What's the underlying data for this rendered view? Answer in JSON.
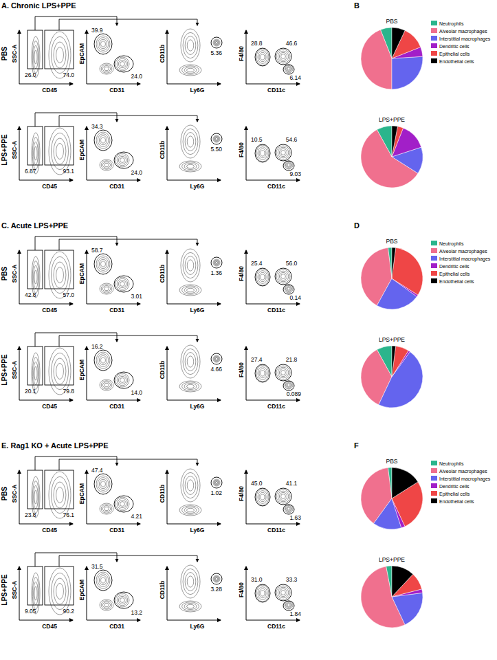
{
  "figure": {
    "plot_axes": [
      {
        "x": "CD45",
        "y": "SSC-A"
      },
      {
        "x": "CD31",
        "y": "EpCAM"
      },
      {
        "x": "Ly6G",
        "y": "CD11b"
      },
      {
        "x": "CD11c",
        "y": "F4/80"
      }
    ],
    "sections": [
      {
        "title": "A. Chronic LPS+PPE",
        "pie_letter": "B",
        "rows": [
          {
            "label": "PBS",
            "gates": [
              [
                "26.0",
                "74.0"
              ],
              [
                "39.9",
                "24.0"
              ],
              [
                "5.36"
              ],
              [
                "28.8",
                "46.6",
                "6.14"
              ]
            ]
          },
          {
            "label": "LPS+PPE",
            "gates": [
              [
                "6.87",
                "93.1"
              ],
              [
                "34.3",
                "24.0"
              ],
              [
                "5.50"
              ],
              [
                "10.5",
                "54.6",
                "9.03"
              ]
            ]
          }
        ]
      },
      {
        "title": "C. Acute LPS+PPE",
        "pie_letter": "D",
        "rows": [
          {
            "label": "PBS",
            "gates": [
              [
                "42.8",
                "57.0"
              ],
              [
                "58.7",
                "3.01"
              ],
              [
                "1.36"
              ],
              [
                "25.4",
                "56.0",
                "0.14"
              ]
            ]
          },
          {
            "label": "LPS+PPE",
            "gates": [
              [
                "20.1",
                "79.8"
              ],
              [
                "16.2",
                "14.0"
              ],
              [
                "4.66"
              ],
              [
                "27.4",
                "21.8",
                "0.089"
              ]
            ]
          }
        ]
      },
      {
        "title": "E. Rag1 KO + Acute LPS+PPE",
        "pie_letter": "F",
        "rows": [
          {
            "label": "PBS",
            "gates": [
              [
                "23.8",
                "76.1"
              ],
              [
                "47.4",
                "4.21"
              ],
              [
                "1.02"
              ],
              [
                "45.0",
                "41.1",
                "1.63"
              ]
            ]
          },
          {
            "label": "LPS+PPE",
            "gates": [
              [
                "9.05",
                "90.2"
              ],
              [
                "31.5",
                "13.2"
              ],
              [
                "3.28"
              ],
              [
                "31.0",
                "33.3",
                "1.84"
              ]
            ]
          }
        ]
      }
    ]
  },
  "chart_data": [
    {
      "type": "pie",
      "title": "PBS",
      "legend": "right",
      "categories": [
        "Neutrophils",
        "Alveolar macrophages",
        "Interstitial macrophages",
        "Dendritic cells",
        "Epithelial cells",
        "Endothelial cells"
      ],
      "values": [
        6,
        44,
        26,
        5,
        12,
        7
      ],
      "colors": [
        "#2bb58c",
        "#f0708e",
        "#6464ee",
        "#a21fc8",
        "#ef4646",
        "#000000"
      ]
    },
    {
      "type": "pie",
      "title": "LPS+PPE",
      "categories": [
        "Neutrophils",
        "Alveolar macrophages",
        "Interstitial macrophages",
        "Dendritic cells",
        "Epithelial cells",
        "Endothelial cells"
      ],
      "values": [
        8,
        58,
        14,
        14,
        3,
        3
      ],
      "colors": [
        "#2bb58c",
        "#f0708e",
        "#6464ee",
        "#a21fc8",
        "#ef4646",
        "#000000"
      ]
    },
    {
      "type": "pie",
      "title": "PBS",
      "legend": "right",
      "categories": [
        "Neutrophils",
        "Alveolar macrophages",
        "Interstitial macrophages",
        "Dendritic cells",
        "Epithelial cells",
        "Endothelial cells"
      ],
      "values": [
        2,
        40,
        23,
        1,
        32,
        2
      ],
      "colors": [
        "#2bb58c",
        "#f0708e",
        "#6464ee",
        "#a21fc8",
        "#ef4646",
        "#000000"
      ]
    },
    {
      "type": "pie",
      "title": "LPS+PPE",
      "categories": [
        "Neutrophils",
        "Alveolar macrophages",
        "Interstitial macrophages",
        "Dendritic cells",
        "Epithelial cells",
        "Endothelial cells"
      ],
      "values": [
        8,
        35,
        47,
        1,
        7,
        2
      ],
      "colors": [
        "#2bb58c",
        "#f0708e",
        "#6464ee",
        "#a21fc8",
        "#ef4646",
        "#000000"
      ]
    },
    {
      "type": "pie",
      "title": "PBS",
      "legend": "right",
      "categories": [
        "Neutrophils",
        "Alveolar macrophages",
        "Interstitial macrophages",
        "Dendritic cells",
        "Epithelial cells",
        "Endothelial cells"
      ],
      "values": [
        2,
        38,
        15,
        2,
        27,
        16
      ],
      "colors": [
        "#2bb58c",
        "#f0708e",
        "#6464ee",
        "#a21fc8",
        "#ef4646",
        "#000000"
      ]
    },
    {
      "type": "pie",
      "title": "LPS+PPE",
      "categories": [
        "Neutrophils",
        "Alveolar macrophages",
        "Interstitial macrophages",
        "Dendritic cells",
        "Epithelial cells",
        "Endothelial cells"
      ],
      "values": [
        3,
        54,
        20,
        2,
        9,
        12
      ],
      "colors": [
        "#2bb58c",
        "#f0708e",
        "#6464ee",
        "#a21fc8",
        "#ef4646",
        "#000000"
      ]
    }
  ]
}
